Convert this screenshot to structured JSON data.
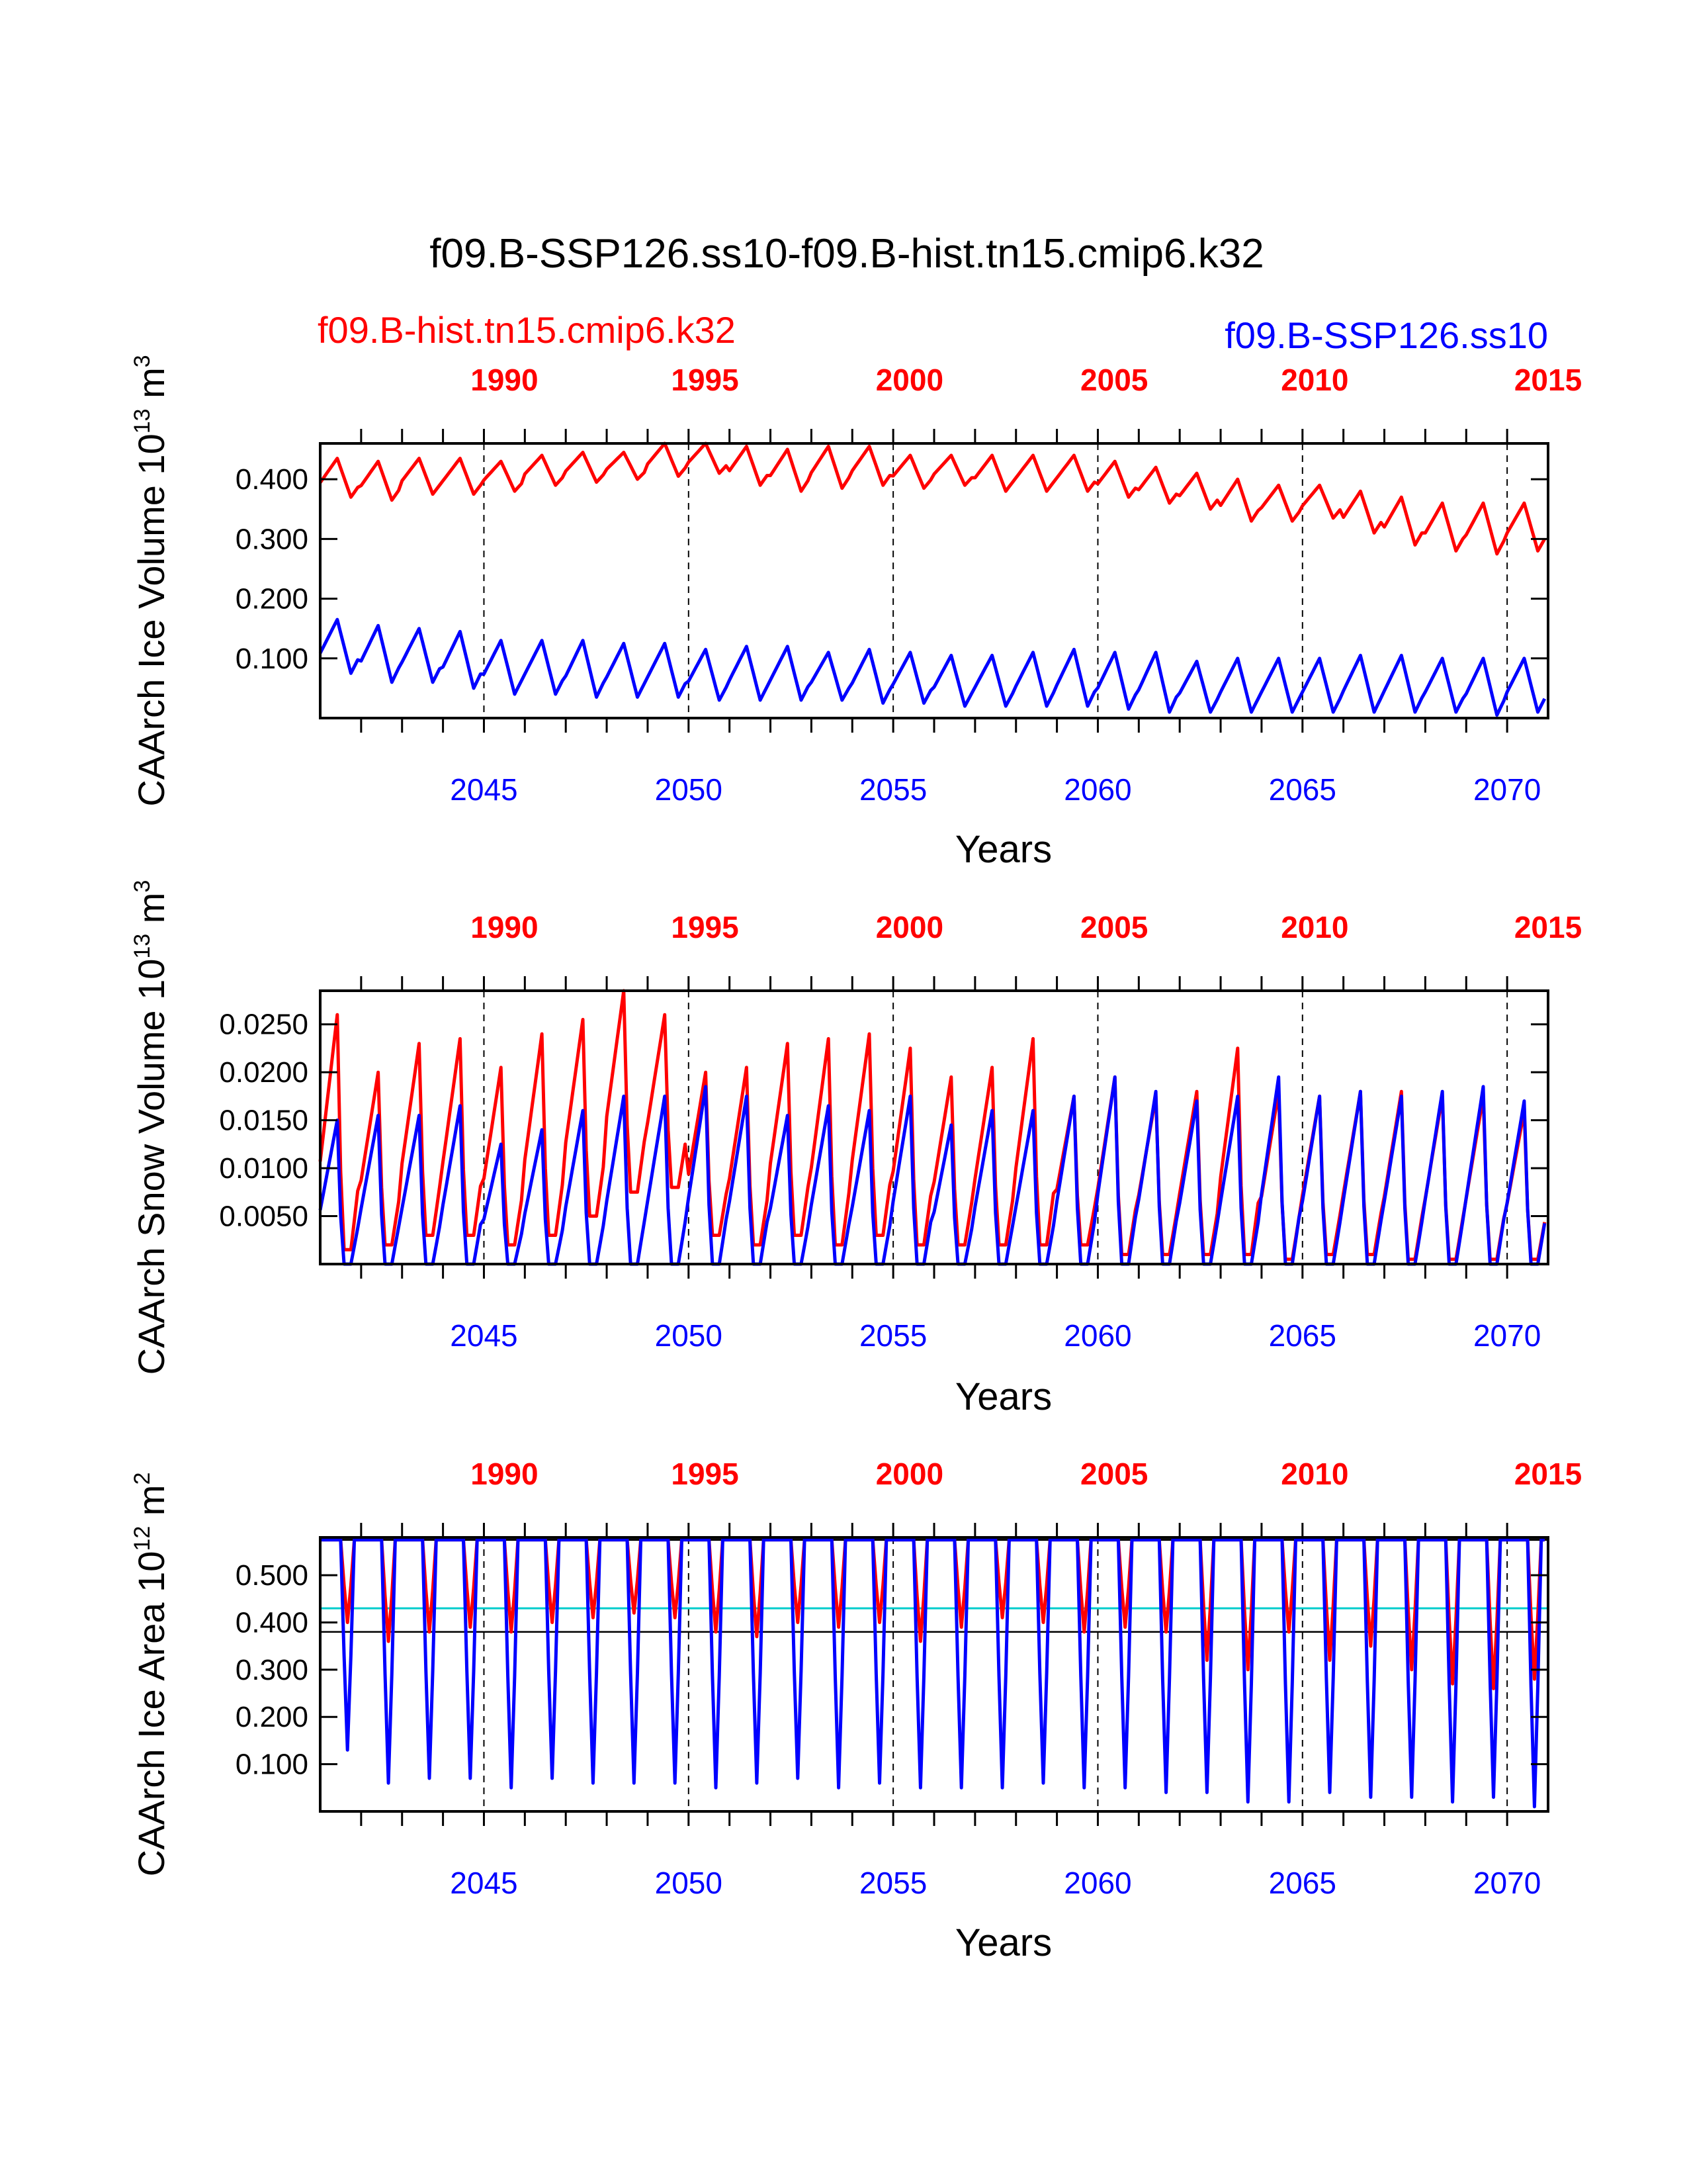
{
  "figure": {
    "title": "f09.B-SSP126.ss10-f09.B-hist.tn15.cmip6.k32",
    "case_hist": "f09.B-hist.tn15.cmip6.k32",
    "case_ssp": "f09.B-SSP126.ss10",
    "colors": {
      "hist": "#ff0000",
      "ssp": "#0000ff",
      "threshold": "#00cccc",
      "frame": "#000000"
    }
  },
  "chart_data": [
    {
      "type": "line",
      "ylabel_main": "CAArch Ice Volume 10",
      "ylabel_exp": "13",
      "ylabel_unit": " m",
      "ylabel_unit_exp": "3",
      "xlabel": "Years",
      "top_axis_ticks": [
        "1990",
        "1995",
        "2000",
        "2005",
        "2010",
        "2015"
      ],
      "bottom_axis_ticks": [
        "2045",
        "2050",
        "2055",
        "2060",
        "2065",
        "2070"
      ],
      "y_ticks": [
        "0.100",
        "0.200",
        "0.300",
        "0.400"
      ],
      "y_tick_values": [
        0.1,
        0.2,
        0.3,
        0.4
      ],
      "ylim": [
        0.0,
        0.46
      ],
      "x_range_years": [
        2041.0,
        2071.0
      ],
      "grid": "dashed vertical lines at 5-year marks",
      "series": [
        {
          "name": "f09.B-hist.tn15.cmip6.k32",
          "color": "#ff0000",
          "seasonal": {
            "min": [
              0.37,
              0.365,
              0.375,
              0.375,
              0.38,
              0.39,
              0.395,
              0.4,
              0.405,
              0.41,
              0.39,
              0.38,
              0.385,
              0.39,
              0.385,
              0.39,
              0.38,
              0.38,
              0.38,
              0.37,
              0.36,
              0.35,
              0.33,
              0.33,
              0.335,
              0.31,
              0.29,
              0.28,
              0.275,
              0.28
            ],
            "max": [
              0.435,
              0.43,
              0.435,
              0.435,
              0.43,
              0.44,
              0.445,
              0.445,
              0.46,
              0.46,
              0.455,
              0.45,
              0.455,
              0.455,
              0.44,
              0.44,
              0.44,
              0.44,
              0.44,
              0.43,
              0.42,
              0.41,
              0.4,
              0.39,
              0.39,
              0.38,
              0.37,
              0.36,
              0.36,
              0.36
            ]
          }
        },
        {
          "name": "f09.B-SSP126.ss10",
          "color": "#0000ff",
          "seasonal": {
            "min": [
              0.075,
              0.06,
              0.06,
              0.05,
              0.04,
              0.04,
              0.035,
              0.035,
              0.035,
              0.03,
              0.03,
              0.03,
              0.03,
              0.025,
              0.025,
              0.02,
              0.02,
              0.02,
              0.02,
              0.015,
              0.01,
              0.01,
              0.01,
              0.01,
              0.01,
              0.01,
              0.01,
              0.01,
              0.005,
              0.01
            ],
            "max": [
              0.165,
              0.155,
              0.15,
              0.145,
              0.13,
              0.13,
              0.13,
              0.125,
              0.125,
              0.115,
              0.12,
              0.12,
              0.11,
              0.115,
              0.11,
              0.105,
              0.105,
              0.11,
              0.115,
              0.11,
              0.11,
              0.095,
              0.1,
              0.1,
              0.1,
              0.105,
              0.105,
              0.1,
              0.1,
              0.1
            ]
          }
        }
      ]
    },
    {
      "type": "line",
      "ylabel_main": "CAArch Snow Volume 10",
      "ylabel_exp": "13",
      "ylabel_unit": " m",
      "ylabel_unit_exp": "3",
      "xlabel": "Years",
      "top_axis_ticks": [
        "1990",
        "1995",
        "2000",
        "2005",
        "2010",
        "2015"
      ],
      "bottom_axis_ticks": [
        "2045",
        "2050",
        "2055",
        "2060",
        "2065",
        "2070"
      ],
      "y_ticks": [
        "0.0050",
        "0.0100",
        "0.0150",
        "0.0200",
        "0.0250"
      ],
      "y_tick_values": [
        0.005,
        0.01,
        0.015,
        0.02,
        0.025
      ],
      "ylim": [
        0.0,
        0.0285
      ],
      "x_range_years": [
        2041.0,
        2071.0
      ],
      "grid": "dashed vertical lines at 5-year marks",
      "series": [
        {
          "name": "f09.B-hist.tn15.cmip6.k32",
          "color": "#ff0000",
          "seasonal": {
            "min": [
              0.0015,
              0.002,
              0.003,
              0.003,
              0.002,
              0.003,
              0.005,
              0.0075,
              0.008,
              0.003,
              0.002,
              0.003,
              0.002,
              0.003,
              0.002,
              0.002,
              0.002,
              0.002,
              0.002,
              0.001,
              0.001,
              0.001,
              0.001,
              0.0005,
              0.001,
              0.001,
              0.0005,
              0.0005,
              0.0005,
              0.0005
            ],
            "max": [
              0.026,
              0.02,
              0.023,
              0.0235,
              0.0205,
              0.024,
              0.0255,
              0.0285,
              0.026,
              0.02,
              0.0205,
              0.023,
              0.0235,
              0.024,
              0.0225,
              0.0195,
              0.0205,
              0.0235,
              0.0175,
              0.0195,
              0.0175,
              0.018,
              0.0225,
              0.018,
              0.0175,
              0.018,
              0.018,
              0.0175,
              0.0175,
              0.016
            ]
          }
        },
        {
          "name": "f09.B-SSP126.ss10",
          "color": "#0000ff",
          "seasonal": {
            "min": [
              0.0,
              0.0,
              0.0,
              0.0,
              0.0,
              0.0,
              0.0,
              0.0,
              0.0,
              0.0,
              0.0,
              0.0,
              0.0,
              0.0,
              0.0,
              0.0,
              0.0,
              0.0,
              0.0,
              0.0,
              0.0,
              0.0,
              0.0,
              0.0,
              0.0,
              0.0,
              0.0,
              0.0,
              0.0,
              0.0
            ],
            "max": [
              0.015,
              0.0155,
              0.0155,
              0.0165,
              0.0125,
              0.014,
              0.016,
              0.0175,
              0.0175,
              0.0185,
              0.0175,
              0.0155,
              0.0165,
              0.016,
              0.0175,
              0.0145,
              0.016,
              0.016,
              0.0175,
              0.0195,
              0.018,
              0.017,
              0.0175,
              0.0195,
              0.0175,
              0.018,
              0.0175,
              0.018,
              0.0185,
              0.017
            ]
          }
        }
      ]
    },
    {
      "type": "line",
      "ylabel_main": "CAArch Ice Area 10",
      "ylabel_exp": "12",
      "ylabel_unit": " m",
      "ylabel_unit_exp": "2",
      "xlabel": "Years",
      "top_axis_ticks": [
        "1990",
        "1995",
        "2000",
        "2005",
        "2010",
        "2015"
      ],
      "bottom_axis_ticks": [
        "2045",
        "2050",
        "2055",
        "2060",
        "2065",
        "2070"
      ],
      "y_ticks": [
        "0.100",
        "0.200",
        "0.300",
        "0.400",
        "0.500"
      ],
      "y_tick_values": [
        0.1,
        0.2,
        0.3,
        0.4,
        0.5
      ],
      "ylim": [
        0.0,
        0.58
      ],
      "x_range_years": [
        2041.0,
        2071.0
      ],
      "grid": "dashed vertical lines at 5-year marks",
      "reference_lines": {
        "cyan": 0.43,
        "black": 0.38,
        "max": 0.575
      },
      "series": [
        {
          "name": "f09.B-hist.tn15.cmip6.k32",
          "color": "#ff0000",
          "seasonal": {
            "min": [
              0.4,
              0.36,
              0.38,
              0.39,
              0.38,
              0.4,
              0.41,
              0.42,
              0.41,
              0.38,
              0.37,
              0.4,
              0.39,
              0.4,
              0.36,
              0.39,
              0.41,
              0.4,
              0.38,
              0.39,
              0.38,
              0.32,
              0.3,
              0.38,
              0.32,
              0.35,
              0.3,
              0.27,
              0.26,
              0.28
            ],
            "max": [
              0.575,
              0.575,
              0.575,
              0.575,
              0.575,
              0.575,
              0.575,
              0.575,
              0.575,
              0.575,
              0.575,
              0.575,
              0.575,
              0.575,
              0.575,
              0.575,
              0.575,
              0.575,
              0.575,
              0.575,
              0.575,
              0.575,
              0.575,
              0.575,
              0.575,
              0.575,
              0.575,
              0.575,
              0.575,
              0.575
            ]
          }
        },
        {
          "name": "f09.B-SSP126.ss10",
          "color": "#0000ff",
          "seasonal": {
            "min": [
              0.13,
              0.06,
              0.07,
              0.07,
              0.05,
              0.07,
              0.06,
              0.06,
              0.06,
              0.05,
              0.06,
              0.07,
              0.05,
              0.06,
              0.05,
              0.05,
              0.05,
              0.06,
              0.05,
              0.05,
              0.04,
              0.04,
              0.02,
              0.02,
              0.04,
              0.03,
              0.03,
              0.02,
              0.03,
              0.01
            ],
            "max": [
              0.575,
              0.575,
              0.575,
              0.575,
              0.575,
              0.575,
              0.575,
              0.575,
              0.575,
              0.575,
              0.575,
              0.575,
              0.575,
              0.575,
              0.575,
              0.575,
              0.575,
              0.575,
              0.575,
              0.575,
              0.575,
              0.575,
              0.575,
              0.575,
              0.575,
              0.575,
              0.575,
              0.575,
              0.575,
              0.575
            ]
          }
        }
      ]
    }
  ]
}
